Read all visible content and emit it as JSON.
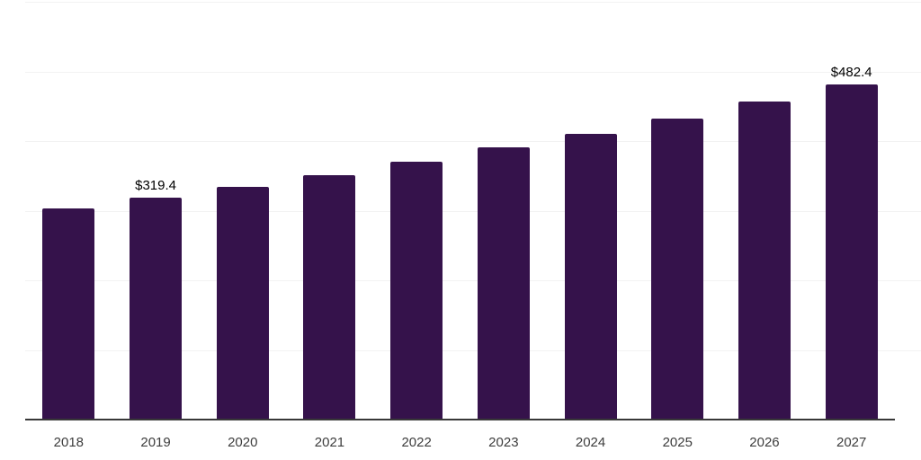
{
  "chart_data": {
    "type": "bar",
    "title": "",
    "xlabel": "",
    "ylabel": "",
    "categories": [
      "2018",
      "2019",
      "2020",
      "2021",
      "2022",
      "2023",
      "2024",
      "2025",
      "2026",
      "2027"
    ],
    "values": [
      303.5,
      319.4,
      334.5,
      351.0,
      370.0,
      391.0,
      411.0,
      433.3,
      457.0,
      482.4
    ],
    "data_labels": [
      "",
      "$319.4",
      "",
      "",
      "",
      "",
      "",
      "",
      "",
      "$482.4"
    ],
    "ylim": [
      0,
      600
    ],
    "gridline_step": 100,
    "grid": true,
    "y_axis_labels_visible": false,
    "legend_position": "none",
    "currency_prefix": "$"
  },
  "style": {
    "bar_color": "#35124B",
    "gridline_color": "#f2f2f2",
    "axis_color": "#383838",
    "tick_label_color": "#3d3d3d",
    "data_label_color": "#000000",
    "background": "#ffffff"
  }
}
